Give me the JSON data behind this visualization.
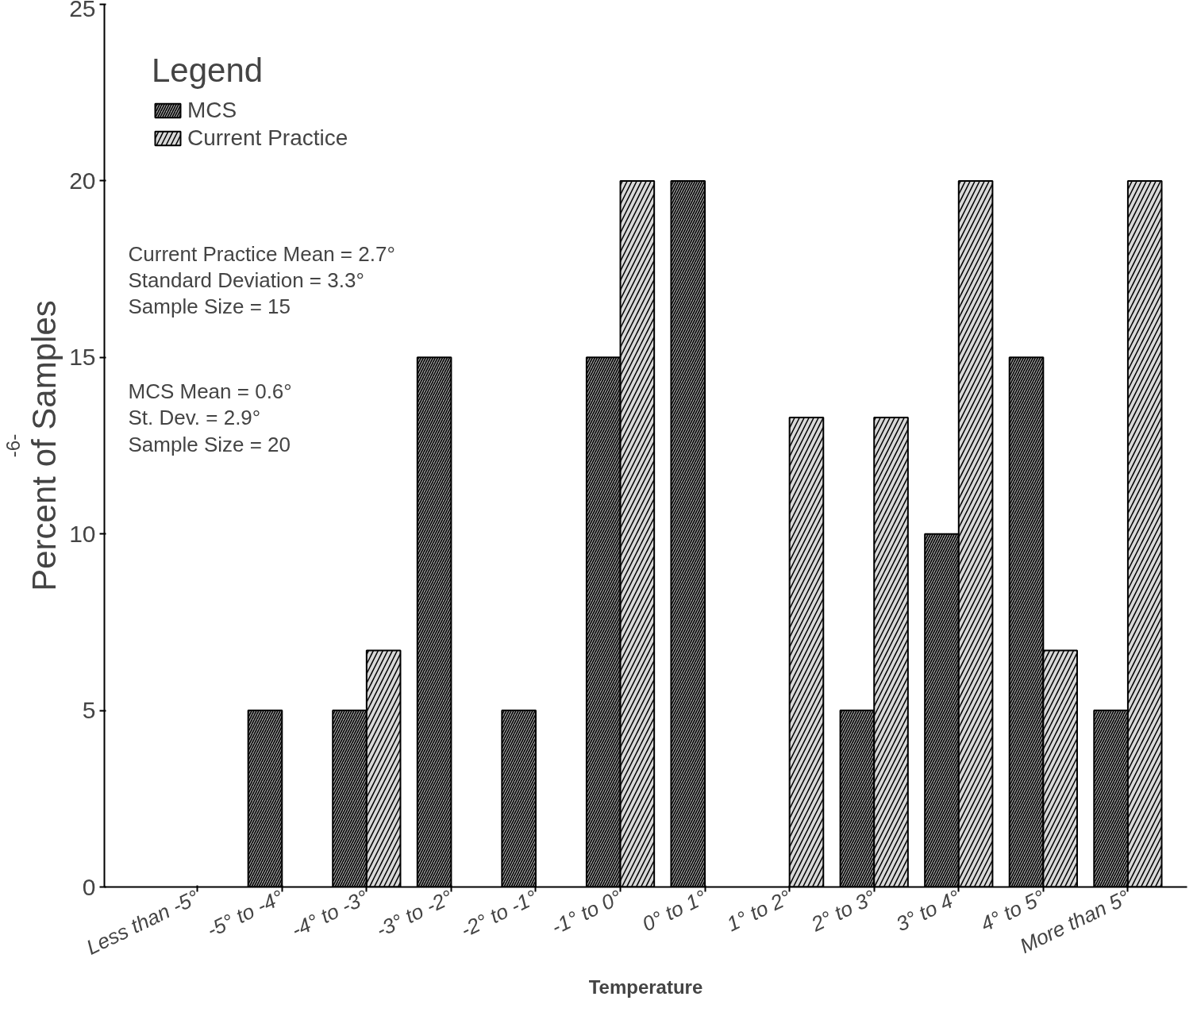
{
  "chart_data": {
    "type": "bar",
    "ylabel": "Percent of Samples",
    "xlabel": "Temperature",
    "legend_title": "Legend",
    "legend": "top left",
    "grid": false,
    "categories": [
      "Less than -5°",
      "-5° to -4°",
      "-4° to -3°",
      "-3° to -2°",
      "-2° to -1°",
      "-1° to 0°",
      "0° to 1°",
      "1° to 2°",
      "2° to 3°",
      "3° to 4°",
      "4° to 5°",
      "More than 5°"
    ],
    "series": [
      {
        "name": "MCS",
        "color": "#a0a0a0",
        "values": [
          null,
          5,
          5,
          15,
          5,
          15,
          20,
          null,
          5,
          10,
          15,
          5
        ]
      },
      {
        "name": "Current Practice",
        "color": "#d8d8d8",
        "values": [
          null,
          null,
          6.7,
          null,
          null,
          20,
          null,
          13.3,
          13.3,
          20,
          6.7,
          20
        ]
      }
    ],
    "ylim": [
      0,
      25
    ],
    "yticks": [
      0,
      5,
      10,
      15,
      20,
      25
    ],
    "annotations": [
      "Current Practice Mean = 2.7°",
      "Standard Deviation = 3.3°",
      "Sample Size = 15",
      "MCS Mean = 0.6°",
      "St. Dev. = 2.9°",
      "Sample Size = 20",
      "-6-"
    ]
  }
}
